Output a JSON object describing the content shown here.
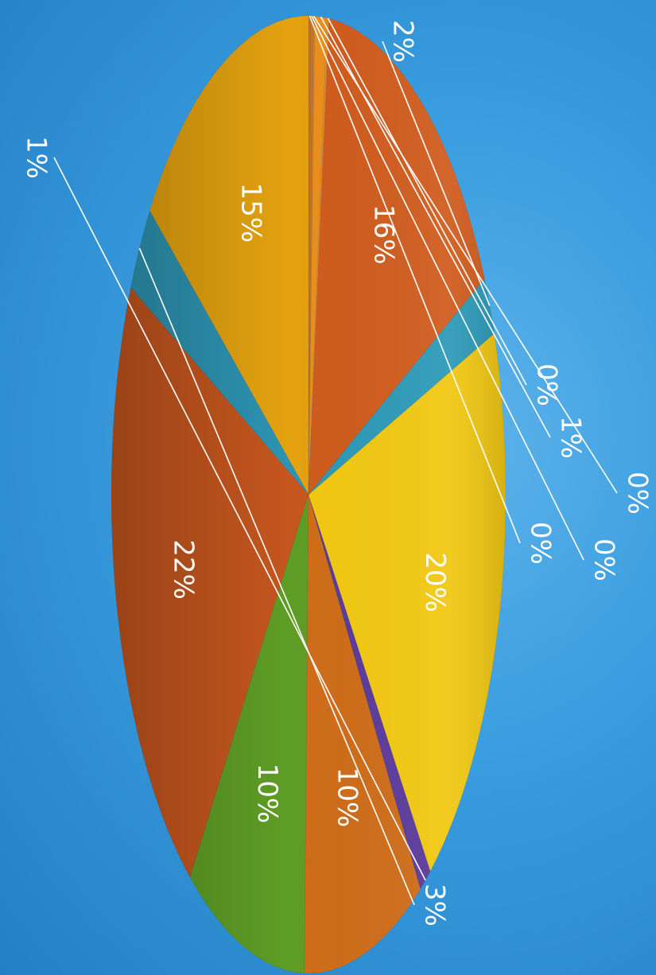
{
  "chart_data": {
    "type": "pie",
    "orientation": "rotated 90 degrees clockwise (labels read bottom-to-top)",
    "style": "3D-shaded tilted pie",
    "values": [
      15,
      3,
      22,
      10,
      10,
      1,
      20,
      2,
      16,
      0,
      1,
      0,
      0,
      0
    ],
    "labels": [
      "15%",
      "3%",
      "22%",
      "10%",
      "10%",
      "1%",
      "20%",
      "2%",
      "16%",
      "0%",
      "1%",
      "0%",
      "0%",
      "0%"
    ],
    "colors": [
      "#e4a20f",
      "#2d94b2",
      "#c5561e",
      "#5e9d25",
      "#cf6d1a",
      "#5b3b9c",
      "#f2c812",
      "#2d9ab8",
      "#d05c1e",
      "#e08a2a",
      "#ea8f1c",
      "#d07a24",
      "#c97722",
      "#c4731f"
    ],
    "title": "",
    "legend": "none",
    "background_color": "#2f8fd6"
  }
}
